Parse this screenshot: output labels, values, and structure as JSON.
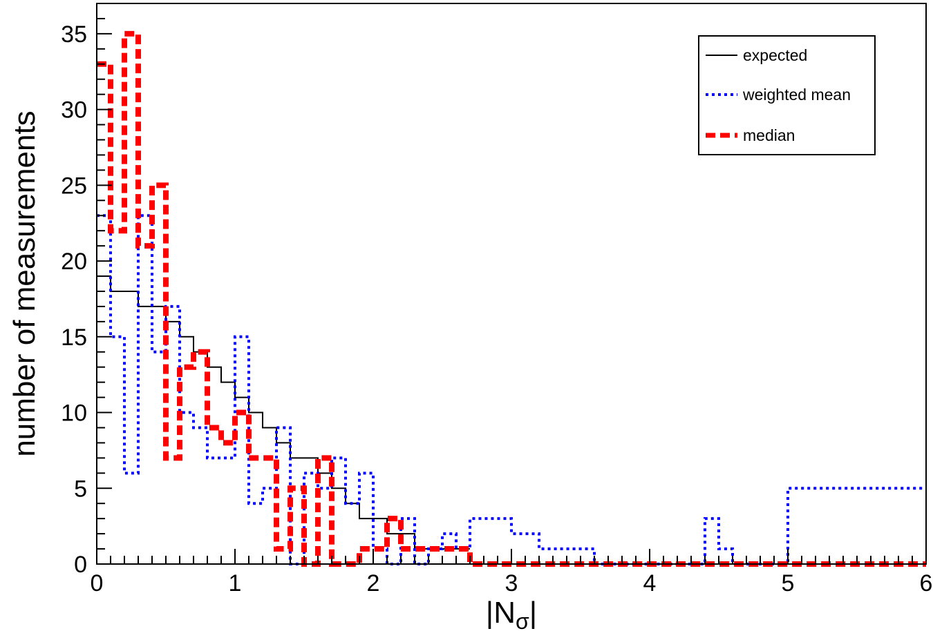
{
  "chart_data": {
    "type": "line",
    "step": true,
    "xlabel": "|N",
    "xlabel_subscript": "σ",
    "xlabel_suffix": "|",
    "ylabel": "number of measurements",
    "xlim": [
      0,
      6
    ],
    "ylim": [
      0,
      37
    ],
    "xticks": [
      "0",
      "1",
      "2",
      "3",
      "4",
      "5",
      "6"
    ],
    "yticks": [
      "0",
      "5",
      "10",
      "15",
      "20",
      "25",
      "30",
      "35"
    ],
    "grid": false,
    "legend_position": "top-right",
    "series": [
      {
        "name": "expected",
        "color": "#000000",
        "style": "solid",
        "bin_width": 0.1,
        "values": [
          19,
          18,
          18,
          17,
          17,
          16,
          15,
          14,
          13,
          12,
          11,
          10,
          9,
          8,
          7,
          7,
          6,
          5,
          4,
          3,
          3,
          2,
          2,
          1,
          1,
          1,
          1
        ]
      },
      {
        "name": "weighted mean",
        "color": "#0000ff",
        "style": "dotted",
        "bin_width": 0.1,
        "values": [
          23,
          15,
          6,
          23,
          14,
          17,
          10,
          9,
          7,
          7,
          15,
          4,
          5,
          9,
          0,
          6,
          5,
          7,
          4,
          6,
          1,
          0,
          3,
          0,
          1,
          2,
          1,
          3,
          3,
          3,
          2,
          2,
          1,
          1,
          1,
          1,
          0,
          0,
          0,
          0,
          0,
          0,
          0,
          0,
          3,
          1,
          0,
          0,
          0,
          0,
          5,
          5,
          5,
          5,
          5,
          5,
          5,
          5,
          5,
          5
        ]
      },
      {
        "name": "median",
        "color": "#ff0000",
        "style": "dashed",
        "bin_width": 0.1,
        "values": [
          33,
          22,
          35,
          21,
          25,
          7,
          13,
          14,
          9,
          8,
          10,
          7,
          7,
          1,
          5,
          0,
          7,
          0,
          0,
          1,
          1,
          3,
          1,
          1,
          1,
          1,
          1,
          0,
          0,
          0,
          0,
          0,
          0,
          0,
          0,
          0,
          0,
          0,
          0,
          0,
          0,
          0,
          0,
          0,
          0,
          0,
          0,
          0,
          0,
          0,
          0,
          0,
          0,
          0,
          0,
          0,
          0,
          0,
          0,
          0
        ]
      }
    ]
  }
}
